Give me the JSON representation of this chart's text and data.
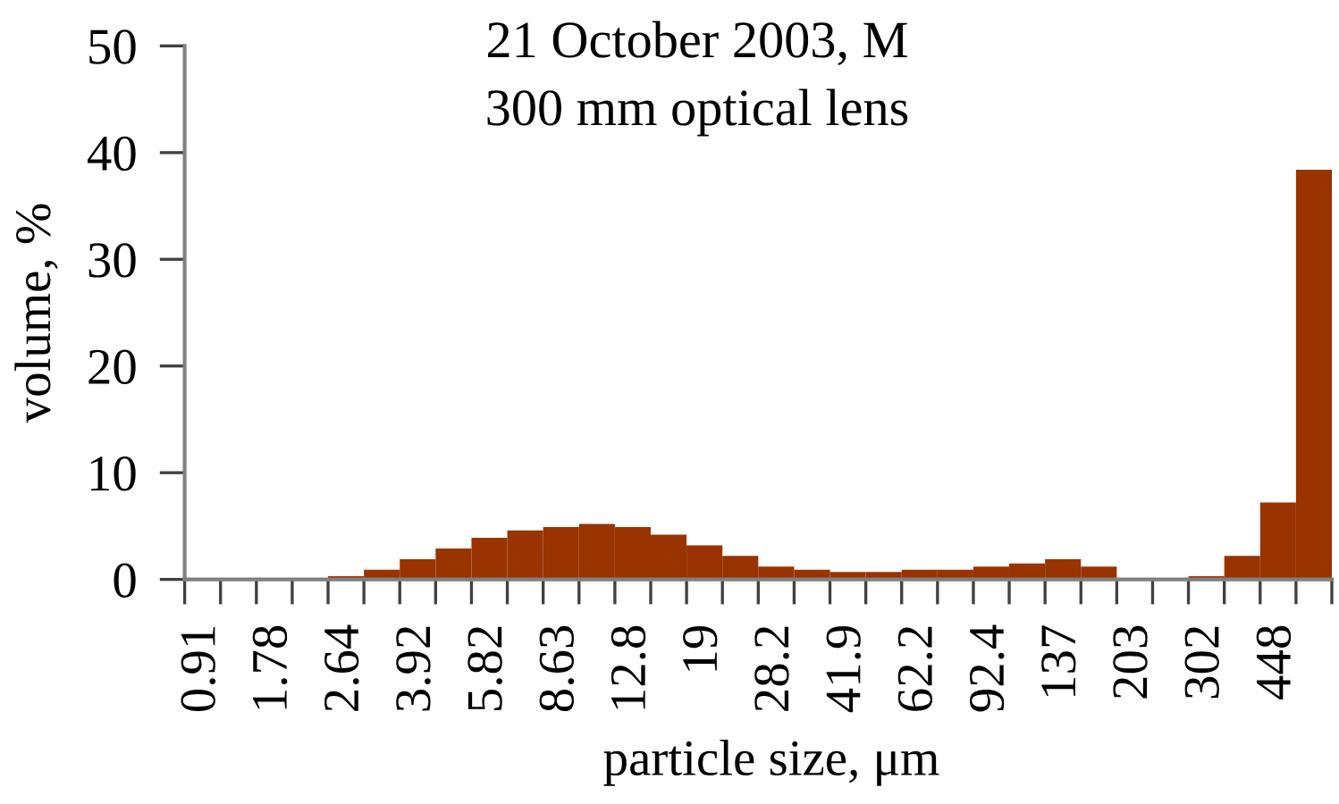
{
  "chart_data": {
    "type": "bar",
    "title": "21 October 2003, M",
    "subtitle": "300 mm optical lens",
    "xlabel": "particle size, μm",
    "ylabel": "volume, %",
    "categories": [
      "0.91",
      null,
      "1.78",
      null,
      "2.64",
      null,
      "3.92",
      null,
      "5.82",
      null,
      "8.63",
      null,
      "12.8",
      null,
      "19",
      null,
      "28.2",
      null,
      "41.9",
      null,
      "62.2",
      null,
      "92.4",
      null,
      "137",
      null,
      "203",
      null,
      "302",
      null,
      "448",
      null
    ],
    "values": [
      0,
      0,
      0,
      0,
      0.3,
      0.9,
      1.9,
      2.9,
      3.9,
      4.6,
      4.9,
      5.2,
      4.9,
      4.2,
      3.2,
      2.2,
      1.2,
      0.9,
      0.7,
      0.7,
      0.9,
      0.9,
      1.2,
      1.5,
      1.9,
      1.2,
      0,
      0,
      0.3,
      2.2,
      7.2,
      38.4
    ],
    "color": "#993300",
    "ylim": [
      0,
      50
    ],
    "yticks": [
      0,
      10,
      20,
      30,
      40,
      50
    ]
  }
}
